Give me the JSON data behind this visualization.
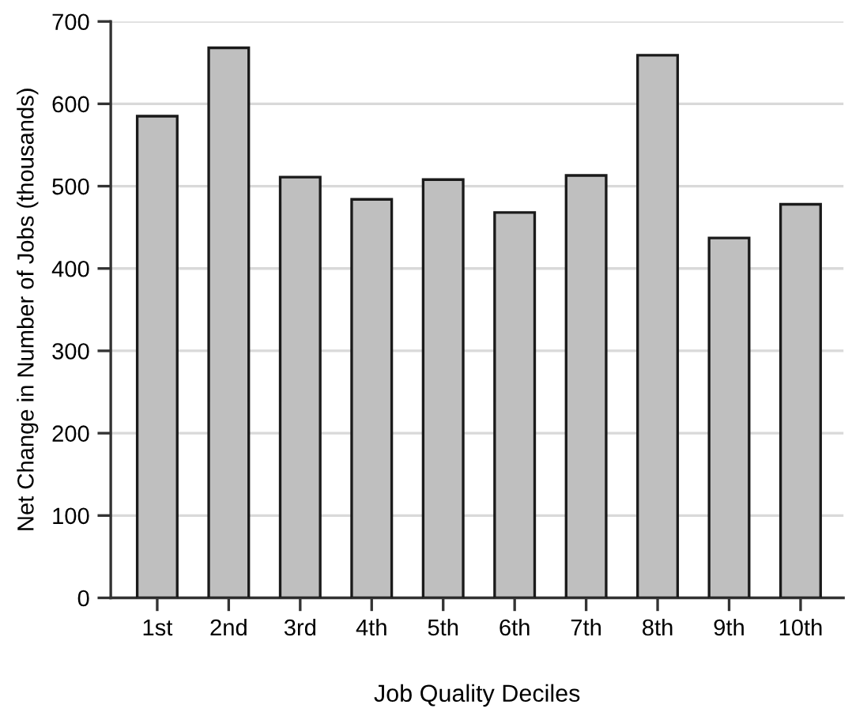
{
  "chart_data": {
    "type": "bar",
    "xlabel": "Job Quality Deciles",
    "ylabel": "Net Change in Number of Jobs (thousands)",
    "categories": [
      "1st",
      "2nd",
      "3rd",
      "4th",
      "5th",
      "6th",
      "7th",
      "8th",
      "9th",
      "10th"
    ],
    "values": [
      585,
      668,
      511,
      484,
      508,
      468,
      513,
      659,
      437,
      478
    ],
    "color": "#bfbfbf",
    "ylim": [
      0,
      700
    ],
    "yticks": [
      0,
      100,
      200,
      300,
      400,
      500,
      600,
      700
    ],
    "grid": "y"
  }
}
